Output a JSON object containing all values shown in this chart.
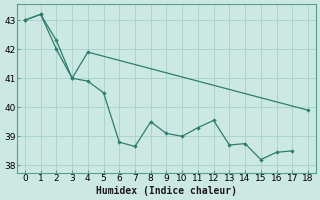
{
  "line1_x": [
    0,
    1,
    2,
    3,
    4,
    5,
    6,
    7,
    8,
    9,
    10,
    11,
    12,
    13,
    14,
    15,
    16,
    17
  ],
  "line1_y": [
    43.0,
    43.2,
    42.3,
    41.0,
    40.9,
    40.5,
    38.8,
    38.65,
    39.5,
    39.1,
    39.0,
    39.3,
    39.55,
    38.7,
    38.75,
    38.2,
    38.45,
    38.5
  ],
  "line2_x": [
    0,
    1,
    2,
    3,
    4,
    18
  ],
  "line2_y": [
    43.0,
    43.2,
    42.0,
    41.0,
    41.9,
    39.9
  ],
  "color": "#2e7d6e",
  "bg_color": "#cce8e2",
  "grid_color": "#aad4cc",
  "xlabel": "Humidex (Indice chaleur)",
  "ylim": [
    37.75,
    43.55
  ],
  "xlim": [
    -0.5,
    18.5
  ],
  "yticks": [
    38,
    39,
    40,
    41,
    42,
    43
  ],
  "xticks": [
    0,
    1,
    2,
    3,
    4,
    5,
    6,
    7,
    8,
    9,
    10,
    11,
    12,
    13,
    14,
    15,
    16,
    17,
    18
  ]
}
